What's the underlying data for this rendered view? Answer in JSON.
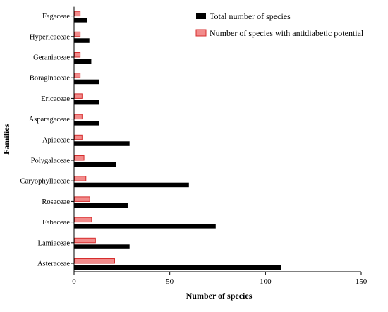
{
  "chart_data": {
    "type": "bar",
    "orientation": "horizontal",
    "categories": [
      "Asteraceae",
      "Lamiaceae",
      "Fabaceae",
      "Rosaceae",
      "Caryophyllaceae",
      "Polygalaceae",
      "Apiaceae",
      "Asparagaceae",
      "Ericaceae",
      "Boraginaceae",
      "Geraniaceae",
      "Hypericaceae",
      "Fagaceae"
    ],
    "series": [
      {
        "name": "Total number of species",
        "color": "#000000",
        "values": [
          108,
          29,
          74,
          28,
          60,
          22,
          29,
          13,
          13,
          13,
          9,
          8,
          7
        ]
      },
      {
        "name": "Number of species with antidiabetic potential",
        "color": "#f28b8b",
        "stroke": "#d62d2d",
        "values": [
          21,
          11,
          9,
          8,
          6,
          5,
          4,
          4,
          4,
          3,
          3,
          3,
          3
        ]
      }
    ],
    "xlabel": "Number of species",
    "ylabel": "Families",
    "xlim": [
      0,
      150
    ],
    "xticks": [
      0,
      50,
      100,
      150
    ],
    "grid": false,
    "legend_position": "top-right"
  }
}
